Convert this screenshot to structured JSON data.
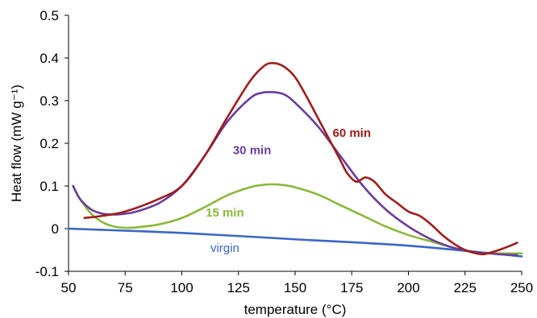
{
  "chart_data": {
    "type": "line",
    "title": "",
    "xlabel": "temperature (°C)",
    "ylabel": "Heat flow (mW g⁻¹)",
    "xlim": [
      50,
      250
    ],
    "ylim": [
      -0.1,
      0.5
    ],
    "x_ticks": [
      50,
      75,
      100,
      125,
      150,
      175,
      200,
      225,
      250
    ],
    "y_ticks": [
      -0.1,
      0,
      0.1,
      0.2,
      0.3,
      0.4,
      0.5
    ],
    "x_tick_labels": [
      "50",
      "75",
      "100",
      "125",
      "150",
      "175",
      "200",
      "225",
      "250"
    ],
    "y_tick_labels": [
      "-0.1",
      "0",
      "0.1",
      "0.2",
      "0.3",
      "0.4",
      "0.5"
    ],
    "grid": false,
    "legend": "none",
    "series": [
      {
        "name": "60 min",
        "color": "#a01c1c",
        "x": [
          57,
          65,
          75,
          90,
          100,
          110,
          120,
          130,
          136,
          140,
          145,
          150,
          155,
          160,
          165,
          170,
          173,
          177,
          181,
          185,
          190,
          195,
          200,
          205,
          210,
          215,
          220,
          225,
          230,
          233,
          237,
          240,
          245,
          248
        ],
        "y": [
          0.025,
          0.03,
          0.04,
          0.07,
          0.1,
          0.17,
          0.26,
          0.345,
          0.38,
          0.388,
          0.38,
          0.355,
          0.31,
          0.26,
          0.21,
          0.16,
          0.13,
          0.11,
          0.12,
          0.11,
          0.08,
          0.06,
          0.04,
          0.03,
          0.01,
          -0.015,
          -0.035,
          -0.05,
          -0.058,
          -0.06,
          -0.055,
          -0.05,
          -0.04,
          -0.033
        ]
      },
      {
        "name": "30 min",
        "color": "#6a3d9a",
        "x": [
          52,
          55,
          60,
          65,
          70,
          75,
          80,
          90,
          100,
          110,
          120,
          130,
          135,
          140,
          145,
          150,
          160,
          170,
          180,
          190,
          200,
          210,
          220,
          230,
          240,
          248
        ],
        "y": [
          0.1,
          0.07,
          0.045,
          0.035,
          0.033,
          0.035,
          0.04,
          0.06,
          0.1,
          0.17,
          0.25,
          0.305,
          0.318,
          0.32,
          0.315,
          0.295,
          0.24,
          0.17,
          0.1,
          0.045,
          0.005,
          -0.025,
          -0.045,
          -0.055,
          -0.06,
          -0.062
        ]
      },
      {
        "name": "15 min",
        "color": "#8ab83a",
        "x": [
          52,
          55,
          60,
          65,
          70,
          75,
          80,
          90,
          100,
          110,
          120,
          130,
          135,
          140,
          145,
          150,
          160,
          170,
          180,
          190,
          200,
          210,
          220,
          230,
          240,
          250
        ],
        "y": [
          0.1,
          0.07,
          0.035,
          0.015,
          0.005,
          0.002,
          0.003,
          0.01,
          0.025,
          0.05,
          0.078,
          0.097,
          0.102,
          0.104,
          0.102,
          0.097,
          0.08,
          0.055,
          0.03,
          0.005,
          -0.015,
          -0.03,
          -0.045,
          -0.055,
          -0.058,
          -0.058
        ]
      },
      {
        "name": "virgin",
        "color": "#3a66c4",
        "x": [
          50,
          100,
          150,
          200,
          250
        ],
        "y": [
          0.0,
          -0.01,
          -0.025,
          -0.04,
          -0.065
        ]
      }
    ]
  }
}
